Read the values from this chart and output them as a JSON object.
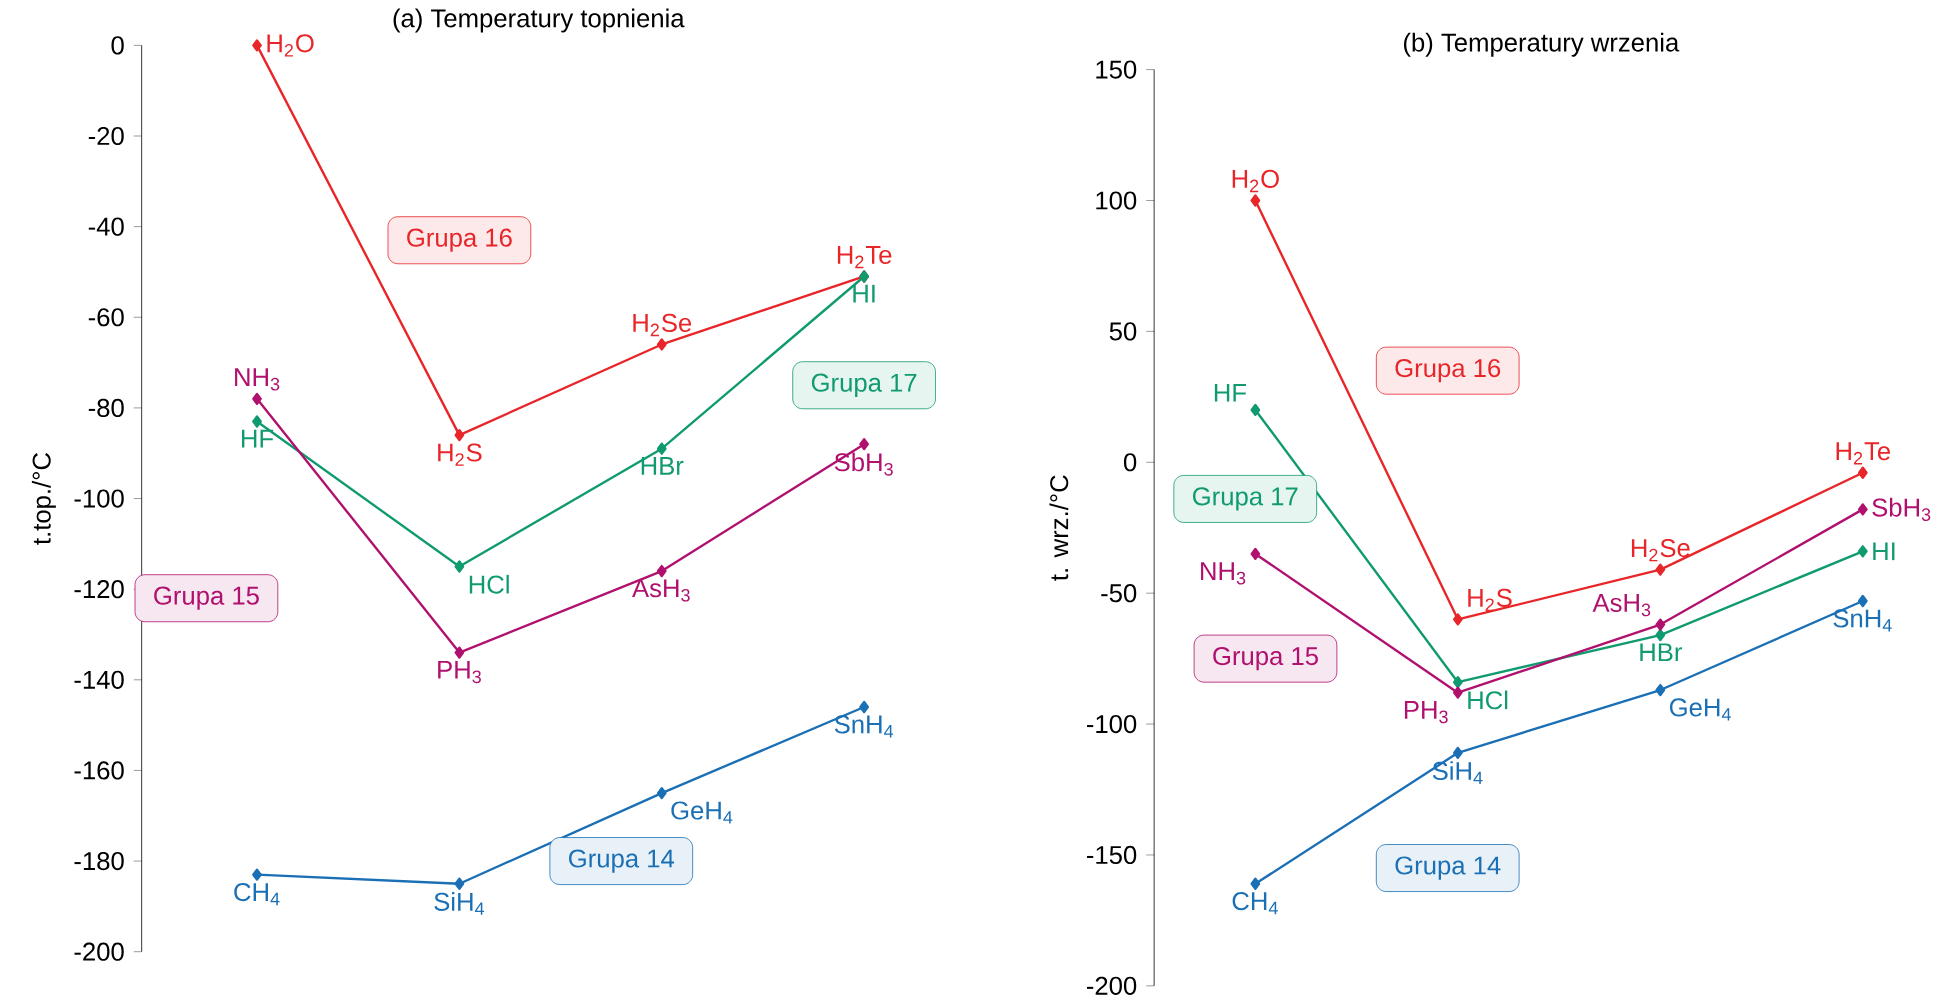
{
  "chart_data": [
    {
      "type": "line",
      "title": "(a) Temperatury topnienia",
      "ylabel": "t.top./°C",
      "categories": [
        null,
        null,
        null,
        null
      ],
      "series": [
        {
          "name": "Grupa 16",
          "color": "#e8262a",
          "values": [
            0,
            -86,
            -66,
            -51
          ]
        },
        {
          "name": "Grupa 17",
          "color": "#109a70",
          "values": [
            -83,
            -115,
            -89,
            -51
          ]
        },
        {
          "name": "Grupa 15",
          "color": "#b0106e",
          "values": [
            -78,
            -134,
            -116,
            -88
          ]
        },
        {
          "name": "Grupa 14",
          "color": "#1a6fb5",
          "values": [
            -183,
            -185,
            -165,
            -146
          ]
        }
      ],
      "annotations": [
        "H$_{2}$O",
        "H$_{2}$S",
        "H$_{2}$Se",
        "H$_{2}$Te",
        "HF",
        "HCl",
        "HBr",
        "HI",
        "NH$_{3}$",
        "PH$_{3}$",
        "AsH$_{3}$",
        "SbH$_{3}$",
        "CH$_{4}$",
        "SiH$_{4}$",
        "GeH$_{4}$",
        "SnH$_{4}$"
      ],
      "ylim": [
        -200,
        0
      ],
      "yticks": [
        -200,
        -180,
        -160,
        -140,
        -120,
        -100,
        -80,
        -60,
        -40,
        -20,
        0
      ],
      "marker": "diamond",
      "tick_labels": "y",
      "legend": "center"
    },
    {
      "type": "line",
      "title": "(b) Temperatury wrzenia",
      "ylabel": "t. wrz./°C",
      "categories": [
        null,
        null,
        null,
        null
      ],
      "series": [
        {
          "name": "Grupa 16",
          "color": "#e8262a",
          "values": [
            100,
            -60,
            -41,
            -4
          ]
        },
        {
          "name": "Grupa 17",
          "color": "#109a70",
          "values": [
            20,
            -84,
            -66,
            -34
          ]
        },
        {
          "name": "Grupa 15",
          "color": "#b0106e",
          "values": [
            -35,
            -88,
            -62,
            -18
          ]
        },
        {
          "name": "Grupa 14",
          "color": "#1a6fb5",
          "values": [
            -161,
            -111,
            -87,
            -53
          ]
        }
      ],
      "annotations": [
        "H$_{2}$O",
        "H$_{2}$S",
        "H$_{2}$Se",
        "H$_{2}$Te",
        "HF",
        "HCl",
        "HBr",
        "HI",
        "NH$_{3}$",
        "PH$_{3}$",
        "AsH$_{3}$",
        "SbH$_{3}$",
        "CH$_{4}$",
        "SiH$_{4}$",
        "GeH$_{4}$",
        "SnH$_{4}$"
      ],
      "ylim": [
        -200,
        150
      ],
      "yticks": [
        -200,
        -150,
        -100,
        -50,
        0,
        50,
        100,
        150
      ],
      "marker": "diamond",
      "tick_labels": "y",
      "legend": "left"
    }
  ]
}
